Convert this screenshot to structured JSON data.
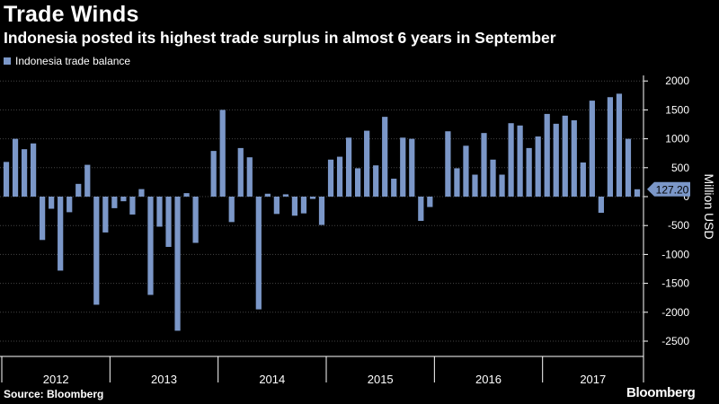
{
  "header": {
    "title": "Trade Winds",
    "subtitle": "Indonesia posted its highest trade surplus in almost 6 years in September"
  },
  "footer": {
    "source": "Source: Bloomberg",
    "brand": "Bloomberg"
  },
  "colors": {
    "background": "#000000",
    "bar": "#7b97c8",
    "grid": "#444444",
    "text": "#ffffff"
  },
  "chart_data": {
    "type": "bar",
    "title": "Trade Winds",
    "subtitle": "Indonesia posted its highest trade surplus in almost 6 years in September",
    "ylabel": "Million USD",
    "ylim": [
      -2700,
      2150
    ],
    "yticks": [
      2000,
      1500,
      1000,
      500,
      0,
      -500,
      -1000,
      -1500,
      -2000,
      -2500
    ],
    "ytick_labels": [
      "2000",
      "1500",
      "1000",
      "500",
      "0",
      "-500",
      "-1000",
      "-1500",
      "-2000",
      "-2500"
    ],
    "years": [
      "2012",
      "2013",
      "2014",
      "2015",
      "2016",
      "2017"
    ],
    "grid": true,
    "legend_position": "top-left",
    "last_value_label": "127.20",
    "series": [
      {
        "name": "Indonesia trade balance",
        "values": [
          600,
          1000,
          820,
          920,
          -750,
          -210,
          -1280,
          -270,
          220,
          550,
          -1870,
          -620,
          -200,
          -80,
          -310,
          130,
          -1700,
          -520,
          -870,
          -2320,
          60,
          -800,
          0,
          790,
          1500,
          -440,
          840,
          680,
          -1950,
          50,
          -300,
          40,
          -330,
          -290,
          -40,
          -490,
          640,
          690,
          1020,
          490,
          1140,
          540,
          1380,
          310,
          1020,
          1000,
          -420,
          -180,
          0,
          1130,
          490,
          880,
          380,
          1100,
          640,
          380,
          1270,
          1230,
          840,
          1040,
          1430,
          1260,
          1400,
          1320,
          590,
          1660,
          -280,
          1720,
          1780,
          1000,
          127.2
        ]
      }
    ]
  }
}
